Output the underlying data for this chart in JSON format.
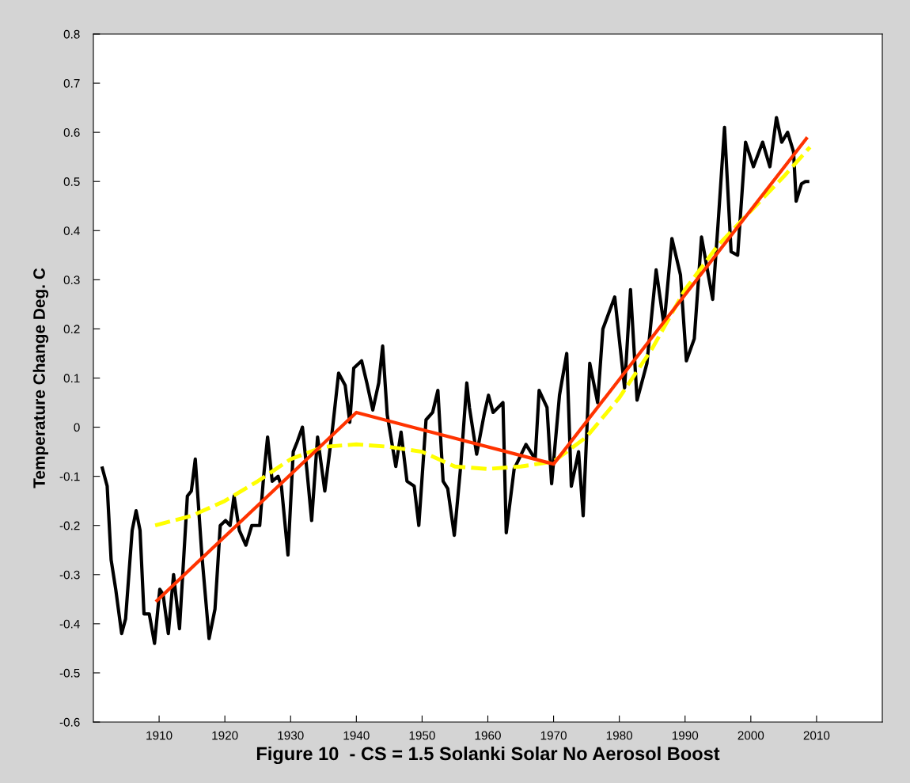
{
  "chart_data": {
    "type": "line",
    "xlabel": "Figure 10  - CS = 1.5 Solanki Solar No Aerosol Boost",
    "ylabel": "Temperature Change Deg. C",
    "xlim": [
      1900,
      2020
    ],
    "xticks": [
      1910,
      1920,
      1930,
      1940,
      1950,
      1960,
      1970,
      1980,
      1990,
      2000,
      2010
    ],
    "ylim": [
      -0.6,
      0.8
    ],
    "yticks": [
      -0.6,
      -0.5,
      -0.4,
      -0.3,
      -0.2,
      -0.1,
      0,
      0.1,
      0.2,
      0.3,
      0.4,
      0.5,
      0.6,
      0.7,
      0.8
    ],
    "grid": false,
    "marker": "none",
    "series": [
      {
        "color": "#000000",
        "line_style": "solid",
        "x": [
          1901.3,
          1902.1,
          1902.7,
          1903.4,
          1904.3,
          1904.9,
          1905.9,
          1906.5,
          1907.1,
          1907.7,
          1908.5,
          1909.3,
          1910.1,
          1910.6,
          1911.4,
          1912.2,
          1913.1,
          1914.3,
          1914.9,
          1915.5,
          1916.5,
          1917.6,
          1918.5,
          1919.3,
          1920.1,
          1920.8,
          1921.4,
          1922.2,
          1923.2,
          1924.1,
          1925.3,
          1925.9,
          1926.5,
          1927.2,
          1928.1,
          1928.6,
          1929.6,
          1930.4,
          1931.0,
          1931.8,
          1932.5,
          1933.2,
          1934.1,
          1935.2,
          1936.4,
          1937.3,
          1938.3,
          1939.0,
          1939.6,
          1940.8,
          1941.6,
          1942.5,
          1943.4,
          1944.0,
          1944.7,
          1946.0,
          1946.8,
          1947.7,
          1948.8,
          1949.5,
          1950.6,
          1951.6,
          1952.4,
          1953.2,
          1953.9,
          1954.9,
          1955.9,
          1956.8,
          1957.2,
          1958.3,
          1959.5,
          1960.1,
          1960.8,
          1962.3,
          1962.8,
          1964.0,
          1965.8,
          1967.2,
          1967.8,
          1969.0,
          1969.7,
          1970.9,
          1972.0,
          1972.7,
          1973.8,
          1974.5,
          1975.5,
          1976.7,
          1977.5,
          1979.3,
          1980.8,
          1981.7,
          1982.7,
          1984.2,
          1985.6,
          1986.8,
          1988.0,
          1989.3,
          1990.2,
          1991.4,
          1992.5,
          1994.2,
          1995.0,
          1996.0,
          1997.0,
          1998.0,
          1999.2,
          2000.4,
          2001.8,
          2002.9,
          2003.9,
          2004.7,
          2005.6,
          2006.5,
          2006.9,
          2007.7,
          2008.3,
          2008.9
        ],
        "values": [
          -0.08,
          -0.12,
          -0.27,
          -0.33,
          -0.42,
          -0.39,
          -0.21,
          -0.17,
          -0.21,
          -0.38,
          -0.38,
          -0.44,
          -0.33,
          -0.34,
          -0.42,
          -0.3,
          -0.41,
          -0.14,
          -0.13,
          -0.065,
          -0.26,
          -0.43,
          -0.37,
          -0.2,
          -0.19,
          -0.2,
          -0.14,
          -0.21,
          -0.24,
          -0.2,
          -0.2,
          -0.1,
          -0.02,
          -0.11,
          -0.1,
          -0.12,
          -0.26,
          -0.05,
          -0.03,
          0.0,
          -0.09,
          -0.19,
          -0.02,
          -0.13,
          0.0,
          0.11,
          0.085,
          0.01,
          0.12,
          0.135,
          0.09,
          0.035,
          0.09,
          0.165,
          0.025,
          -0.08,
          -0.01,
          -0.11,
          -0.12,
          -0.2,
          0.015,
          0.03,
          0.075,
          -0.11,
          -0.125,
          -0.22,
          -0.075,
          0.09,
          0.04,
          -0.055,
          0.03,
          0.065,
          0.03,
          0.05,
          -0.215,
          -0.085,
          -0.035,
          -0.065,
          0.075,
          0.04,
          -0.115,
          0.065,
          0.15,
          -0.12,
          -0.05,
          -0.18,
          0.13,
          0.05,
          0.2,
          0.265,
          0.08,
          0.28,
          0.055,
          0.13,
          0.32,
          0.207,
          0.384,
          0.31,
          0.135,
          0.18,
          0.387,
          0.26,
          0.41,
          0.61,
          0.357,
          0.35,
          0.58,
          0.53,
          0.58,
          0.53,
          0.63,
          0.58,
          0.6,
          0.56,
          0.46,
          0.495,
          0.5,
          0.5
        ]
      },
      {
        "color": "#ffff00",
        "line_style": "dashed",
        "x": [
          1909.4,
          1915,
          1920,
          1925,
          1930,
          1935,
          1940,
          1945,
          1950,
          1955,
          1960,
          1965,
          1970,
          1975,
          1980,
          1985,
          1990,
          1995,
          2000,
          2005,
          2009
        ],
        "values": [
          -0.2,
          -0.18,
          -0.15,
          -0.11,
          -0.065,
          -0.04,
          -0.035,
          -0.04,
          -0.05,
          -0.08,
          -0.085,
          -0.08,
          -0.07,
          -0.02,
          0.06,
          0.16,
          0.28,
          0.37,
          0.44,
          0.51,
          0.57
        ]
      },
      {
        "color": "#ff3300",
        "line_style": "solid",
        "x": [
          1909.5,
          1940,
          1970,
          2008.6
        ],
        "values": [
          -0.355,
          0.03,
          -0.075,
          0.59
        ]
      }
    ]
  }
}
